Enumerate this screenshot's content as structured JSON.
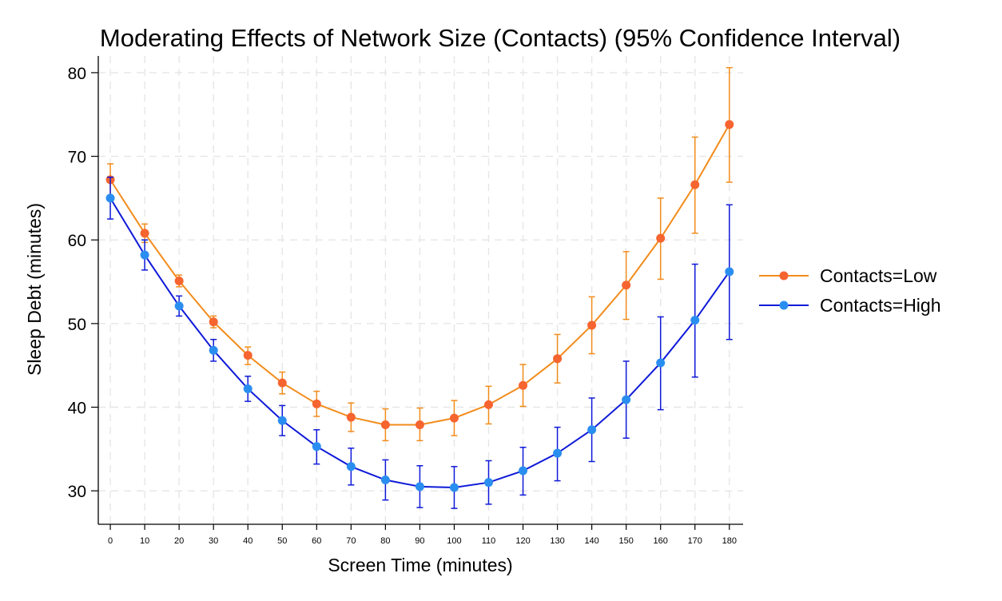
{
  "chart_data": {
    "type": "line",
    "title": "Moderating Effects of Network Size (Contacts) (95% Confidence Interval)",
    "xlabel": "Screen Time (minutes)",
    "ylabel": "Sleep Debt (minutes)",
    "x": [
      0,
      10,
      20,
      30,
      40,
      50,
      60,
      70,
      80,
      90,
      100,
      110,
      120,
      130,
      140,
      150,
      160,
      170,
      180
    ],
    "xticks": [
      "0",
      "10",
      "20",
      "30",
      "40",
      "50",
      "60",
      "70",
      "80",
      "90",
      "100",
      "110",
      "120",
      "130",
      "140",
      "150",
      "160",
      "170",
      "180"
    ],
    "yticks": [
      "30",
      "40",
      "50",
      "60",
      "70",
      "80"
    ],
    "xlim": [
      -3.5,
      184
    ],
    "ylim": [
      26,
      82
    ],
    "grid": true,
    "legend_position": "right",
    "series": [
      {
        "name": "Contacts=Low",
        "line_color": "#f28c1c",
        "marker_color": "#f6642f",
        "values": [
          67.2,
          60.8,
          55.1,
          50.2,
          46.2,
          42.9,
          40.4,
          38.8,
          37.9,
          37.9,
          38.7,
          40.3,
          42.6,
          45.8,
          49.8,
          54.6,
          60.2,
          66.6,
          73.8
        ],
        "lower": [
          65.3,
          59.7,
          54.4,
          49.5,
          45.1,
          41.6,
          38.9,
          37.1,
          36.0,
          36.0,
          36.6,
          38.0,
          40.1,
          42.9,
          46.4,
          50.5,
          55.3,
          60.8,
          66.9
        ],
        "upper": [
          69.1,
          61.9,
          55.8,
          50.9,
          47.2,
          44.2,
          41.9,
          40.5,
          39.8,
          39.9,
          40.8,
          42.5,
          45.1,
          48.7,
          53.2,
          58.6,
          65.0,
          72.3,
          80.6
        ]
      },
      {
        "name": "Contacts=High",
        "line_color": "#0f1ad8",
        "marker_color": "#2a8ef0",
        "values": [
          65.0,
          58.2,
          52.1,
          46.8,
          42.2,
          38.4,
          35.3,
          32.9,
          31.3,
          30.5,
          30.4,
          31.0,
          32.4,
          34.5,
          37.3,
          40.9,
          45.3,
          50.4,
          56.2
        ],
        "lower": [
          62.5,
          56.4,
          50.9,
          45.5,
          40.7,
          36.6,
          33.2,
          30.7,
          28.9,
          28.0,
          27.9,
          28.4,
          29.5,
          31.2,
          33.5,
          36.3,
          39.7,
          43.6,
          48.1
        ],
        "upper": [
          67.5,
          60.0,
          53.3,
          48.1,
          43.7,
          40.2,
          37.3,
          35.1,
          33.7,
          33.0,
          32.9,
          33.6,
          35.2,
          37.6,
          41.1,
          45.5,
          50.8,
          57.1,
          64.2
        ]
      }
    ]
  }
}
